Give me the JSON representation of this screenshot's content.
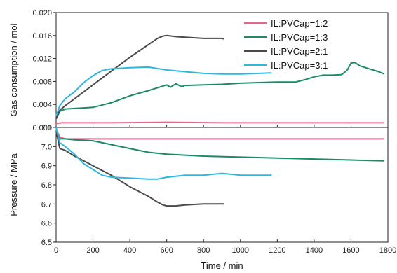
{
  "chart_data": {
    "type": "line",
    "xlabel": "Time / min",
    "xlim": [
      0,
      1800
    ],
    "xticks": [
      "0",
      "200",
      "400",
      "600",
      "800",
      "1000",
      "1200",
      "1400",
      "1600",
      "1800"
    ],
    "xtick_values": [
      0,
      200,
      400,
      600,
      800,
      1000,
      1200,
      1400,
      1600,
      1800
    ],
    "grid": false,
    "legend_position": "top-right",
    "panels": [
      {
        "ylabel": "Gas consumption / mol",
        "ylim": [
          0,
          0.02
        ],
        "yticks": [
          "0.000",
          "0.004",
          "0.008",
          "0.012",
          "0.016",
          "0.020"
        ],
        "ytick_values": [
          0,
          0.004,
          0.008,
          0.012,
          0.016,
          0.02
        ],
        "series": [
          {
            "name": "IL:PVCap=1:2",
            "color": "#e5658b",
            "x": [
              0,
              30,
              100,
              300,
              600,
              900,
              1200,
              1500,
              1780
            ],
            "y": [
              0.0007,
              0.0008,
              0.0008,
              0.0008,
              0.0009,
              0.0008,
              0.0008,
              0.0008,
              0.0008
            ]
          },
          {
            "name": "IL:PVCap=1:3",
            "color": "#1a8a6a",
            "x": [
              0,
              20,
              50,
              100,
              200,
              300,
              400,
              500,
              560,
              600,
              620,
              650,
              680,
              700,
              800,
              900,
              1000,
              1100,
              1200,
              1300,
              1350,
              1400,
              1450,
              1500,
              1550,
              1580,
              1600,
              1620,
              1650,
              1700,
              1750,
              1780
            ],
            "y": [
              0.0015,
              0.0028,
              0.0032,
              0.0033,
              0.0035,
              0.0043,
              0.0055,
              0.0064,
              0.007,
              0.0074,
              0.007,
              0.0076,
              0.0071,
              0.0073,
              0.0074,
              0.0075,
              0.0077,
              0.0078,
              0.0079,
              0.0079,
              0.0083,
              0.0088,
              0.0091,
              0.0091,
              0.0092,
              0.01,
              0.0112,
              0.0113,
              0.0107,
              0.0102,
              0.0097,
              0.0093
            ]
          },
          {
            "name": "IL:PVCap=2:1",
            "color": "#4a4a4a",
            "x": [
              0,
              20,
              50,
              100,
              200,
              300,
              400,
              500,
              550,
              580,
              600,
              650,
              700,
              800,
              900,
              910
            ],
            "y": [
              0.0015,
              0.003,
              0.0038,
              0.005,
              0.0074,
              0.0098,
              0.0122,
              0.0144,
              0.0155,
              0.0159,
              0.016,
              0.0158,
              0.0157,
              0.0155,
              0.0155,
              0.0154
            ]
          },
          {
            "name": "IL:PVCap=3:1",
            "color": "#2bb8e0",
            "x": [
              0,
              20,
              50,
              100,
              150,
              200,
              250,
              280,
              300,
              400,
              500,
              600,
              700,
              800,
              900,
              1000,
              1100,
              1170
            ],
            "y": [
              0.002,
              0.0038,
              0.005,
              0.0062,
              0.0078,
              0.009,
              0.0099,
              0.0101,
              0.0102,
              0.0104,
              0.0105,
              0.01,
              0.0097,
              0.0094,
              0.0093,
              0.0093,
              0.0094,
              0.0095
            ]
          }
        ]
      },
      {
        "ylabel": "Pressure / MPa",
        "ylim": [
          6.5,
          7.1
        ],
        "yticks": [
          "6.5",
          "6.6",
          "6.7",
          "6.8",
          "6.9",
          "7.0",
          "7.1"
        ],
        "ytick_values": [
          6.5,
          6.6,
          6.7,
          6.8,
          6.9,
          7.0,
          7.1
        ],
        "series": [
          {
            "name": "IL:PVCap=1:2",
            "color": "#e5658b",
            "x": [
              0,
              20,
              50,
              200,
              600,
              1000,
              1400,
              1780
            ],
            "y": [
              7.09,
              7.05,
              7.04,
              7.04,
              7.04,
              7.04,
              7.04,
              7.04
            ]
          },
          {
            "name": "IL:PVCap=1:3",
            "color": "#1a8a6a",
            "x": [
              0,
              20,
              50,
              100,
              200,
              300,
              400,
              500,
              600,
              700,
              800,
              1000,
              1200,
              1400,
              1600,
              1780
            ],
            "y": [
              7.08,
              7.04,
              7.04,
              7.035,
              7.03,
              7.01,
              6.99,
              6.97,
              6.96,
              6.955,
              6.95,
              6.945,
              6.94,
              6.935,
              6.93,
              6.925
            ]
          },
          {
            "name": "IL:PVCap=2:1",
            "color": "#4a4a4a",
            "x": [
              0,
              20,
              50,
              100,
              200,
              300,
              400,
              500,
              550,
              580,
              600,
              650,
              700,
              800,
              910
            ],
            "y": [
              7.08,
              6.99,
              6.98,
              6.95,
              6.9,
              6.85,
              6.79,
              6.74,
              6.71,
              6.695,
              6.69,
              6.69,
              6.695,
              6.7,
              6.7
            ]
          },
          {
            "name": "IL:PVCap=3:1",
            "color": "#2bb8e0",
            "x": [
              0,
              20,
              50,
              100,
              150,
              200,
              250,
              300,
              400,
              500,
              550,
              600,
              700,
              800,
              900,
              1000,
              1100,
              1170
            ],
            "y": [
              7.1,
              7.02,
              7.0,
              6.96,
              6.91,
              6.88,
              6.85,
              6.84,
              6.835,
              6.83,
              6.83,
              6.84,
              6.85,
              6.85,
              6.86,
              6.85,
              6.85,
              6.85
            ]
          }
        ]
      }
    ]
  }
}
